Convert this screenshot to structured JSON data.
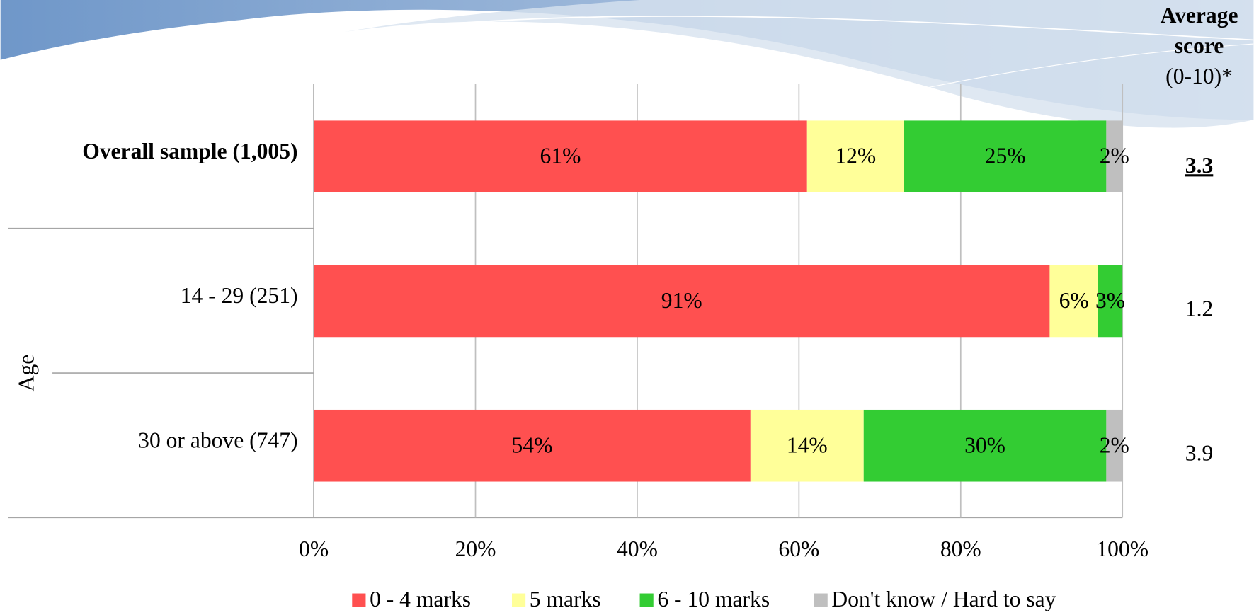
{
  "chart_data": {
    "type": "stacked-bar-horizontal",
    "categories": [
      "Overall sample (1,005)",
      "14 - 29 (251)",
      "30 or above (747)"
    ],
    "group_label": "Age",
    "series": [
      {
        "name": "0 - 4 marks",
        "color": "#ff5050",
        "values": [
          61,
          91,
          54
        ],
        "value_labels": [
          "61%",
          "91%",
          "54%"
        ]
      },
      {
        "name": "5 marks",
        "color": "#ffff99",
        "values": [
          12,
          6,
          14
        ],
        "value_labels": [
          "12%",
          "6%",
          "14%"
        ]
      },
      {
        "name": "6 - 10 marks",
        "color": "#33cc33",
        "values": [
          25,
          3,
          30
        ],
        "value_labels": [
          "25%",
          "3%",
          "30%"
        ]
      },
      {
        "name": "Don't know / Hard to say",
        "color": "#bfbfbf",
        "values": [
          2,
          null,
          2
        ],
        "value_labels": [
          "2%",
          null,
          "2%"
        ]
      }
    ],
    "xlim": [
      0,
      100
    ],
    "xticks": [
      {
        "value": 0,
        "label": "0%"
      },
      {
        "value": 20,
        "label": "20%"
      },
      {
        "value": 40,
        "label": "40%"
      },
      {
        "value": 60,
        "label": "60%"
      },
      {
        "value": 80,
        "label": "80%"
      },
      {
        "value": 100,
        "label": "100%"
      }
    ],
    "grid": true,
    "legend": "bottom",
    "average_header": [
      "Average",
      "score",
      "(0-10)*"
    ],
    "average_scores": [
      3.3,
      1.2,
      3.9
    ]
  }
}
